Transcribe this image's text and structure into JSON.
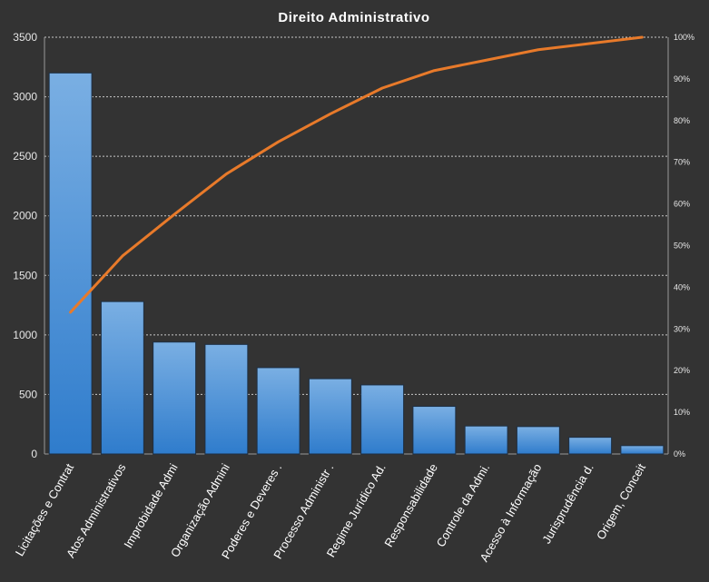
{
  "chart_data": {
    "type": "bar",
    "title": "Direito  Administrativo",
    "categories": [
      "Licitações e Contrat",
      "Atos Administrativos",
      "Improbidade  Admi",
      "Organização Admini",
      "Poderes  e Deveres .",
      "Processo Administr .",
      "Regime Jurídico Ad.",
      "Responsabilidade",
      "Controle da Admi.",
      "Acesso à Informação",
      "Jurisprudência d.",
      "Origem, Conceit"
    ],
    "series": [
      {
        "values": [
          3200,
          1280,
          940,
          920,
          725,
          632,
          580,
          400,
          235,
          230,
          140,
          70
        ]
      },
      {
        "values": [
          0.34,
          0.475,
          0.575,
          0.672,
          0.749,
          0.816,
          0.878,
          0.92,
          0.945,
          0.97,
          0.985,
          1.0
        ]
      }
    ],
    "yticks": [
      "0",
      "500",
      "1000",
      "1500",
      "2000",
      "2500",
      "3000",
      "3500"
    ],
    "y2ticks": [
      "0%",
      "10%",
      "20%",
      "30%",
      "40%",
      "50%",
      "60%",
      "70%",
      "80%",
      "90%",
      "100%"
    ],
    "ylim": [
      0,
      3500
    ],
    "y2lim": [
      0,
      1
    ],
    "grid": true,
    "colors": {
      "background": "#333333",
      "bar_top": "#7aafe3",
      "bar_bottom": "#2f7ccc",
      "line": "#e87a2a",
      "text": "#ffffff"
    }
  }
}
